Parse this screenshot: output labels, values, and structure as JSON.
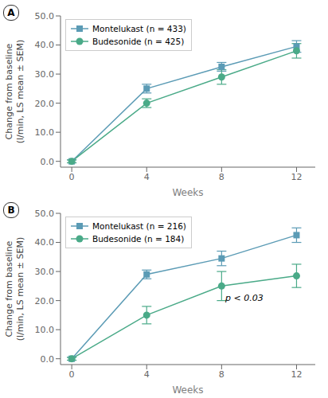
{
  "chart_data": [
    {
      "type": "line",
      "title": "A",
      "xlabel": "Weeks",
      "ylabel": "Change from baseline\n(l/min, LS mean ± SEM)",
      "x": [
        0,
        4,
        8,
        12
      ],
      "xlim": [
        -0.6,
        13.0
      ],
      "xticks": [
        0,
        4,
        8,
        12
      ],
      "ylim": [
        -2,
        50
      ],
      "yticks": [
        {
          "value": 0,
          "label": "0.0"
        },
        {
          "value": 10,
          "label": "10.0"
        },
        {
          "value": 20,
          "label": "20.0"
        },
        {
          "value": 30,
          "label": "30.0"
        },
        {
          "value": 40,
          "label": "40.0"
        },
        {
          "value": 50,
          "label": "50.0"
        }
      ],
      "grid": false,
      "legend": "upper left",
      "series": [
        {
          "name": "Montelukast (n = 433)",
          "color": "#5b9bb5",
          "marker": "square",
          "values": [
            0.0,
            25.0,
            32.5,
            39.5
          ],
          "errors": [
            0.5,
            1.5,
            1.5,
            2.0
          ]
        },
        {
          "name": "Budesonide (n = 425)",
          "color": "#4aaa88",
          "marker": "circle",
          "values": [
            0.0,
            20.0,
            29.0,
            38.0
          ],
          "errors": [
            0.5,
            1.5,
            2.5,
            2.5
          ]
        }
      ]
    },
    {
      "type": "line",
      "title": "B",
      "xlabel": "Weeks",
      "ylabel": "Change from baseline\n(l/min, LS mean ± SEM)",
      "x": [
        0,
        4,
        8,
        12
      ],
      "xlim": [
        -0.6,
        13.0
      ],
      "xticks": [
        0,
        4,
        8,
        12
      ],
      "ylim": [
        -2,
        50
      ],
      "yticks": [
        {
          "value": 0,
          "label": "0.0"
        },
        {
          "value": 10,
          "label": "10.0"
        },
        {
          "value": 20,
          "label": "20.0"
        },
        {
          "value": 30,
          "label": "30.0"
        },
        {
          "value": 40,
          "label": "40.0"
        },
        {
          "value": 50,
          "label": "50.0"
        }
      ],
      "grid": false,
      "legend": "upper left",
      "series": [
        {
          "name": "Montelukast (n = 216)",
          "color": "#5b9bb5",
          "marker": "square",
          "values": [
            0.0,
            29.0,
            34.5,
            42.5
          ],
          "errors": [
            0.5,
            1.5,
            2.5,
            2.5
          ]
        },
        {
          "name": "Budesonide (n = 184)",
          "color": "#4aaa88",
          "marker": "circle",
          "values": [
            0.0,
            15.0,
            25.0,
            28.5
          ],
          "errors": [
            0.5,
            3.0,
            5.0,
            4.0
          ]
        }
      ],
      "annotations": [
        {
          "text": "p < 0.03",
          "x": 8.2,
          "y": 20.0
        }
      ]
    }
  ]
}
